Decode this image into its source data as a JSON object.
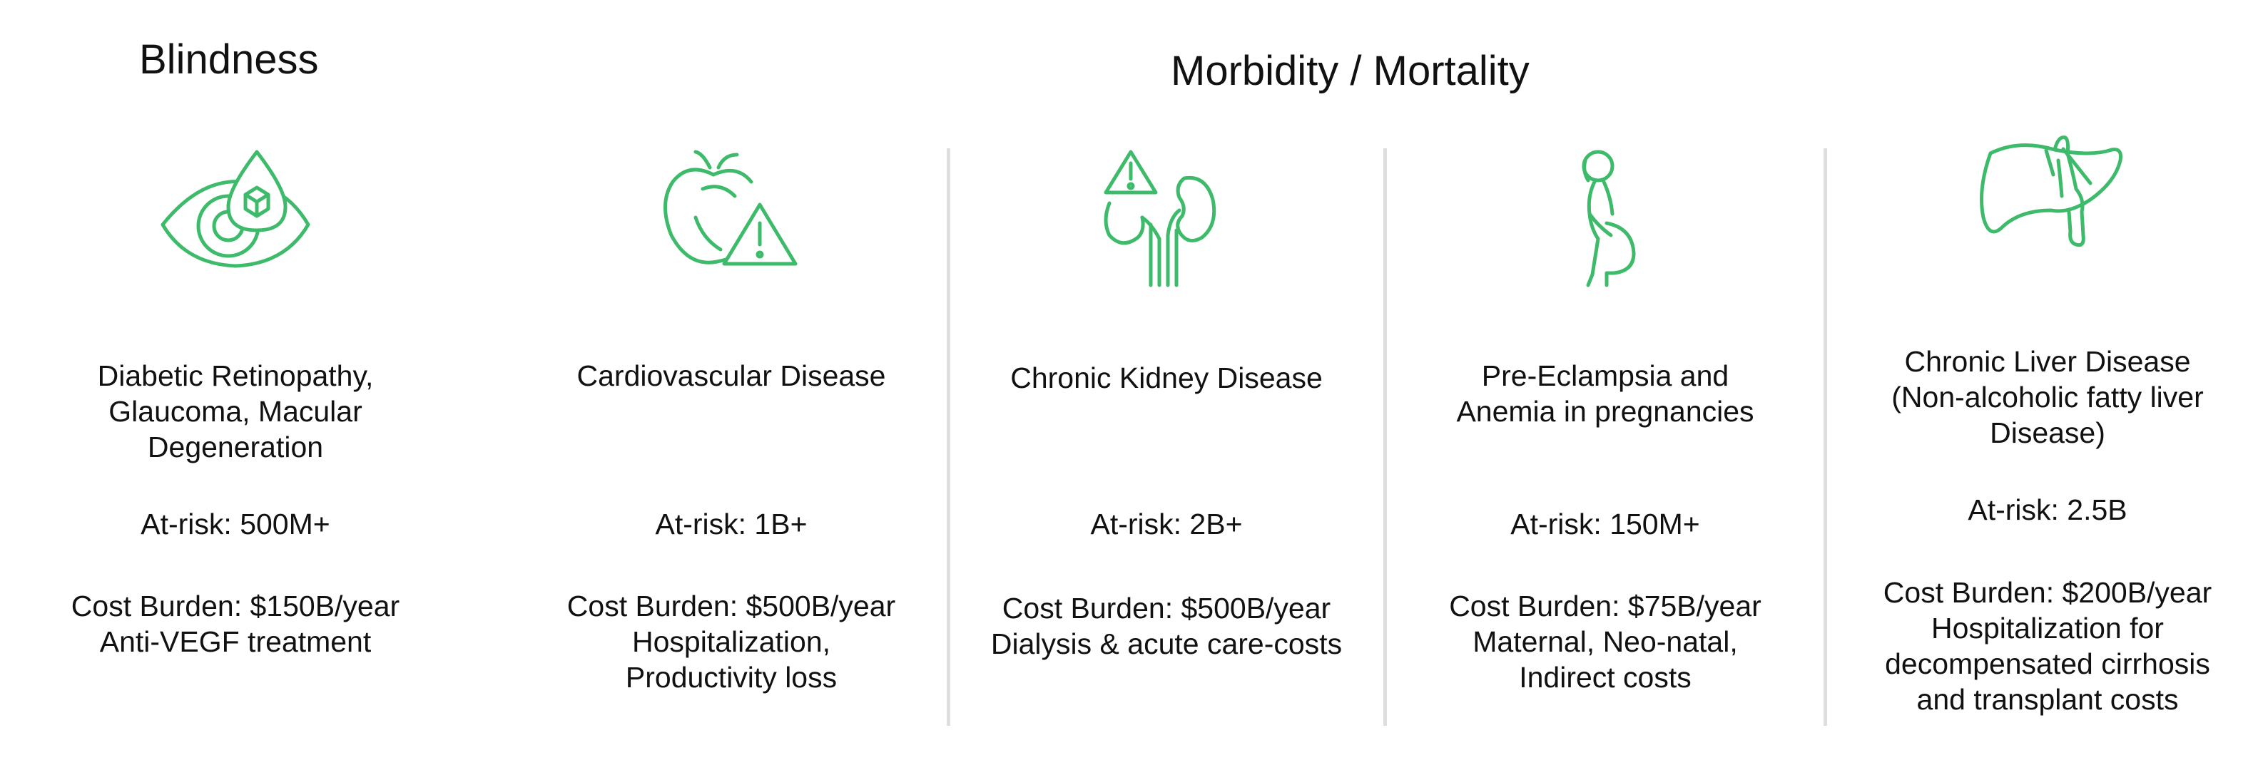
{
  "headings": {
    "blindness": "Blindness",
    "morbidity": "Morbidity / Mortality"
  },
  "theme": {
    "icon_color": "#3dba6a",
    "divider_color": "#dedede"
  },
  "conditions": [
    {
      "icon": "eye-drop-icon",
      "name": "Diabetic Retinopathy,\nGlaucoma, Macular\nDegeneration",
      "at_risk": "At-risk: 500M+",
      "cost": "Cost Burden: $150B/year\nAnti-VEGF treatment"
    },
    {
      "icon": "heart-warning-icon",
      "name": "Cardiovascular Disease",
      "at_risk": "At-risk: 1B+",
      "cost": "Cost Burden: $500B/year\nHospitalization,\nProductivity loss"
    },
    {
      "icon": "kidney-warning-icon",
      "name": "Chronic Kidney Disease",
      "at_risk": "At-risk: 2B+",
      "cost": "Cost Burden: $500B/year\nDialysis & acute care-costs"
    },
    {
      "icon": "pregnant-woman-icon",
      "name": "Pre-Eclampsia and\nAnemia in pregnancies",
      "at_risk": "At-risk: 150M+",
      "cost": "Cost Burden: $75B/year\nMaternal, Neo-natal,\nIndirect costs"
    },
    {
      "icon": "liver-icon",
      "name": "Chronic Liver Disease\n(Non-alcoholic fatty liver\nDisease)",
      "at_risk": "At-risk: 2.5B",
      "cost": "Cost Burden: $200B/year\nHospitalization for\ndecompensated cirrhosis\nand transplant costs"
    }
  ]
}
